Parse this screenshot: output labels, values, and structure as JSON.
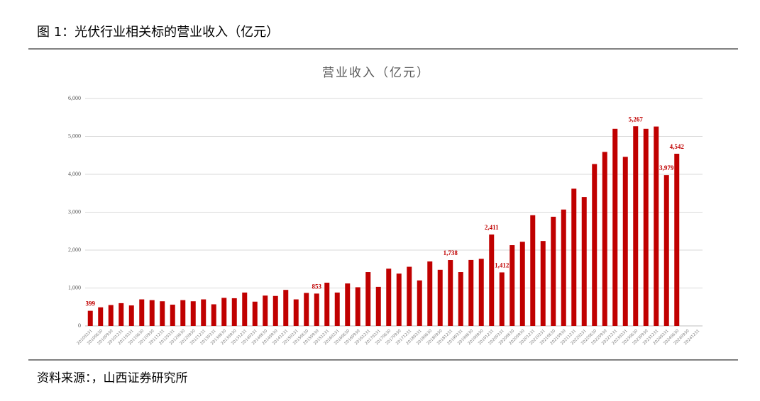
{
  "header": {
    "title": "图 1：光伏行业相关标的营业收入（亿元）"
  },
  "chart_data": {
    "type": "bar",
    "title": "营业收入（亿元）",
    "color": "#c00000",
    "grid": true,
    "categories": [
      "20100331",
      "20100630",
      "20100930",
      "20101231",
      "20110331",
      "20110630",
      "20110930",
      "20111231",
      "20120331",
      "20120630",
      "20120930",
      "20121231",
      "20130331",
      "20130630",
      "20130930",
      "20131231",
      "20140331",
      "20140630",
      "20140930",
      "20141231",
      "20150331",
      "20150630",
      "20150930",
      "20151231",
      "20160331",
      "20160630",
      "20160930",
      "20161231",
      "20170331",
      "20170630",
      "20170930",
      "20171231",
      "20180331",
      "20180630",
      "20180930",
      "20181231",
      "20190331",
      "20190630",
      "20190930",
      "20191231",
      "20200331",
      "20200630",
      "20200930",
      "20201231",
      "20210331",
      "20210630",
      "20210930",
      "20211231",
      "20220331",
      "20220630",
      "20220930",
      "20221231",
      "20230331",
      "20230630",
      "20230930",
      "20231231",
      "20240331",
      "20240630",
      "20240930",
      "20241231"
    ],
    "values": [
      399,
      490,
      550,
      600,
      540,
      700,
      680,
      650,
      560,
      680,
      650,
      700,
      570,
      740,
      730,
      880,
      640,
      800,
      790,
      950,
      700,
      870,
      853,
      1140,
      880,
      1120,
      1020,
      1420,
      1030,
      1510,
      1380,
      1560,
      1200,
      1700,
      1480,
      1738,
      1420,
      1740,
      1770,
      2411,
      1412,
      2130,
      2220,
      2920,
      2240,
      2880,
      3070,
      3620,
      3400,
      4270,
      4590,
      5200,
      4460,
      5267,
      5200,
      5260,
      3979,
      4542,
      null,
      null
    ],
    "value_labels": [
      "399",
      null,
      null,
      null,
      null,
      null,
      null,
      null,
      null,
      null,
      null,
      null,
      null,
      null,
      null,
      null,
      null,
      null,
      null,
      null,
      null,
      null,
      "853",
      null,
      null,
      null,
      null,
      null,
      null,
      null,
      null,
      null,
      null,
      null,
      null,
      "1,738",
      null,
      null,
      null,
      "2,411",
      "1,412",
      null,
      null,
      null,
      null,
      null,
      null,
      null,
      null,
      null,
      null,
      null,
      null,
      "5,267",
      null,
      null,
      "3,979",
      "4,542",
      null,
      null
    ],
    "ylim": [
      0,
      6000
    ],
    "yticks": [
      0,
      {
        "value": 1000,
        "label": "1,000"
      },
      {
        "value": 2000,
        "label": "2,000"
      },
      {
        "value": 3000,
        "label": "3,000"
      },
      {
        "value": 4000,
        "label": "4,000"
      },
      {
        "value": 5000,
        "label": "5,000"
      },
      {
        "value": 6000,
        "label": "6,000"
      }
    ]
  },
  "footer": {
    "source": "资料来源：，山西证券研究所"
  }
}
